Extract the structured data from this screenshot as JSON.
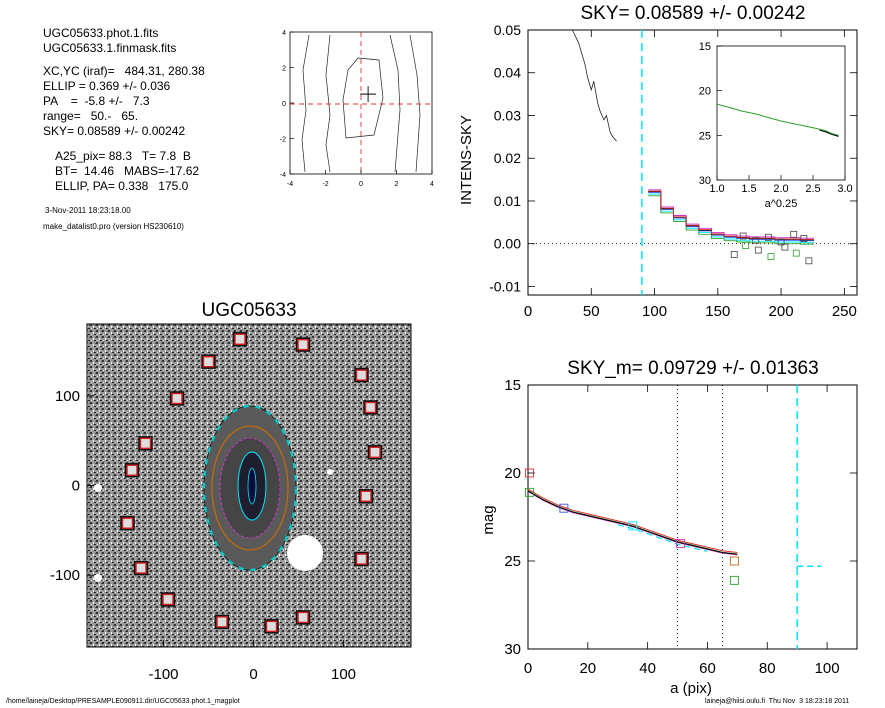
{
  "header": {
    "file1": "UGC05633.phot.1.fits",
    "file2": "UGC05633.1.finmask.fits",
    "xcyc": "XC,YC (iraf)=   484.31, 280.38",
    "ellip": "ELLIP = 0.369 +/- 0.036",
    "pa": "PA    =  -5.8 +/-   7.3",
    "range": "range=   50.-   65.",
    "sky": "SKY= 0.08589 +/- 0.00242",
    "a25": "A25_pix= 88.3   T= 7.8  B",
    "bt": "BT=  14.46   MABS=-17.62",
    "ellip_pa": "ELLIP, PA= 0.338   175.0",
    "date": "3-Nov-2011 18:23:18.00",
    "program": "make_datalist0.pro (version HS230610)"
  },
  "footer": {
    "path": "/home/laineja/Desktop/PRESAMPLE090911.dir/UGC05633.phot.1_magplot",
    "user": "laineja@hiisi.oulu.fi  Thu Nov  3 18:23:18 2011"
  },
  "colors": {
    "cyan": "#00e5ff",
    "red": "#e03030",
    "green": "#2ca02c",
    "orange": "#c06a10",
    "magenta": "#cc33cc",
    "blue": "#3355dd"
  },
  "chart_data": [
    {
      "id": "contour",
      "type": "scatter",
      "title": "",
      "xlim": [
        -4,
        4
      ],
      "ylim": [
        -4,
        4
      ],
      "xticks": [
        "-4",
        "-2",
        "0",
        "2",
        "4"
      ],
      "yticks": [
        "-4",
        "-2",
        "0",
        "2",
        "4"
      ],
      "center": [
        0.4,
        0.5
      ]
    },
    {
      "id": "sky_profile",
      "type": "line",
      "title": "SKY= 0.08589 +/- 0.00242",
      "xlabel": "",
      "ylabel": "INTENS-SKY",
      "xlim": [
        0,
        260
      ],
      "ylim": [
        -0.012,
        0.05
      ],
      "xticks": [
        "0",
        "50",
        "100",
        "150",
        "200",
        "250"
      ],
      "yticks": [
        "-0.01",
        "0.00",
        "0.01",
        "0.02",
        "0.03",
        "0.04",
        "0.05"
      ],
      "cyan_marker_x": 90,
      "inner_profile": {
        "x": [
          35,
          40,
          42,
          45,
          47,
          50,
          52,
          55,
          57,
          60,
          62,
          65,
          67,
          70
        ],
        "y": [
          0.052,
          0.047,
          0.045,
          0.042,
          0.039,
          0.036,
          0.038,
          0.033,
          0.031,
          0.029,
          0.03,
          0.026,
          0.025,
          0.024
        ]
      },
      "outer_profile": {
        "x": [
          95,
          105,
          115,
          125,
          135,
          145,
          155,
          165,
          175,
          185,
          195,
          205,
          215,
          222
        ],
        "y": [
          0.012,
          0.008,
          0.006,
          0.004,
          0.003,
          0.002,
          0.0015,
          0.0012,
          0.001,
          0.001,
          0.0008,
          0.0008,
          0.0007,
          0.0007
        ]
      },
      "red_squares": {
        "x": [
          170,
          180,
          190,
          200,
          210,
          218
        ],
        "y": [
          0.0018,
          0.0008,
          0.0015,
          0.0004,
          0.0022,
          0.0012
        ]
      },
      "green_squares": {
        "x": [
          163,
          172,
          182,
          192,
          203,
          212,
          222
        ],
        "y": [
          -0.0025,
          -0.0004,
          -0.0015,
          -0.003,
          -0.0008,
          -0.0022,
          -0.004
        ]
      },
      "inset": {
        "xlabel": "a^0.25",
        "xlim": [
          1.0,
          3.0
        ],
        "ylim": [
          15,
          30
        ],
        "xticks": [
          "1.0",
          "1.5",
          "2.0",
          "2.5",
          "3.0"
        ],
        "yticks": [
          "15",
          "20",
          "25",
          "30"
        ],
        "x": [
          1.0,
          1.2,
          1.4,
          1.6,
          1.8,
          2.0,
          2.2,
          2.4,
          2.6,
          2.7,
          2.8,
          2.9
        ],
        "y": [
          21.5,
          21.9,
          22.3,
          22.6,
          23.0,
          23.4,
          23.7,
          24.0,
          24.3,
          24.5,
          24.8,
          25.0
        ]
      }
    },
    {
      "id": "image",
      "type": "scatter",
      "title": "UGC05633",
      "xlim": [
        -185,
        175
      ],
      "ylim": [
        -180,
        180
      ],
      "xticks": [
        "-100",
        "0",
        "100"
      ],
      "yticks": [
        "-100",
        "0",
        "100"
      ],
      "sky_boxes": {
        "x": [
          -15,
          55,
          -50,
          120,
          -85,
          130,
          -120,
          135,
          -135,
          125,
          -140,
          120,
          -125,
          -95,
          -35,
          20,
          55
        ],
        "y": [
          163,
          157,
          138,
          123,
          97,
          87,
          47,
          37,
          17,
          -12,
          -42,
          -82,
          -92,
          -127,
          -152,
          -157,
          -147
        ]
      }
    },
    {
      "id": "mag_profile",
      "type": "line",
      "title": "SKY_m=  0.09729 +/- 0.01363",
      "xlabel": "a (pix)",
      "ylabel": "mag",
      "xlim": [
        0,
        110
      ],
      "ylim": [
        30,
        15
      ],
      "xticks": [
        "0",
        "20",
        "40",
        "60",
        "80",
        "100"
      ],
      "yticks": [
        "15",
        "20",
        "25",
        "30"
      ],
      "vlines": [
        50,
        65
      ],
      "cyan_marker_x": 90,
      "profile": {
        "x": [
          0,
          5,
          10,
          15,
          20,
          25,
          30,
          35,
          40,
          45,
          50,
          55,
          60,
          65,
          70
        ],
        "y": [
          21.0,
          21.5,
          21.9,
          22.2,
          22.4,
          22.6,
          22.8,
          23.0,
          23.3,
          23.6,
          23.9,
          24.1,
          24.3,
          24.5,
          24.6
        ]
      },
      "squares": [
        {
          "x": 0.5,
          "y": 20.0,
          "color": "red"
        },
        {
          "x": 0.5,
          "y": 21.1,
          "color": "green"
        },
        {
          "x": 12,
          "y": 22.0,
          "color": "blue"
        },
        {
          "x": 35,
          "y": 23.0,
          "color": "cyan"
        },
        {
          "x": 51,
          "y": 24.0,
          "color": "magenta"
        },
        {
          "x": 69,
          "y": 25.0,
          "color": "orange"
        },
        {
          "x": 69,
          "y": 26.1,
          "color": "green"
        }
      ],
      "cyan_dash": {
        "x": [
          90,
          98
        ],
        "y": 25.3
      }
    }
  ]
}
